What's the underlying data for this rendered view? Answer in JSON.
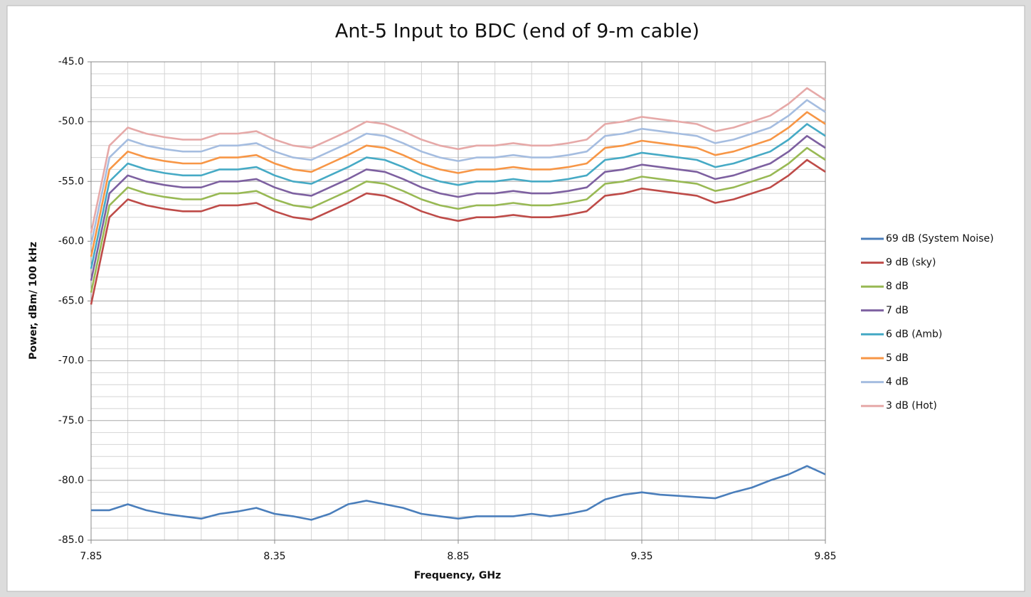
{
  "chart_data": {
    "type": "line",
    "title": "Ant-5 Input to BDC (end of 9-m cable)",
    "x_label": "Frequency, GHz",
    "y_label": "Power, dBm/ 100 kHz",
    "x": [
      7.85,
      7.9,
      7.95,
      8.0,
      8.05,
      8.1,
      8.15,
      8.2,
      8.25,
      8.3,
      8.35,
      8.4,
      8.45,
      8.5,
      8.55,
      8.6,
      8.65,
      8.7,
      8.75,
      8.8,
      8.85,
      8.9,
      8.95,
      9.0,
      9.05,
      9.1,
      9.15,
      9.2,
      9.25,
      9.3,
      9.35,
      9.4,
      9.45,
      9.5,
      9.55,
      9.6,
      9.65,
      9.7,
      9.75,
      9.8,
      9.85
    ],
    "xlim": [
      7.85,
      9.85
    ],
    "xticks": [
      7.85,
      8.35,
      8.85,
      9.35,
      9.85
    ],
    "ylim": [
      -85,
      -45
    ],
    "yticks": [
      {
        "value": -85,
        "label": "-85.0"
      },
      {
        "value": -80,
        "label": "-80.0"
      },
      {
        "value": -75,
        "label": "-75.0"
      },
      {
        "value": -70,
        "label": "-70.0"
      },
      {
        "value": -65,
        "label": "-65.0"
      },
      {
        "value": -60,
        "label": "-60.0"
      },
      {
        "value": -55,
        "label": "-55.0"
      },
      {
        "value": -50,
        "label": "-50.0"
      },
      {
        "value": -45,
        "label": "-45.0"
      }
    ],
    "grid": true,
    "legend": "right",
    "series": [
      {
        "name": "69 dB (System Noise)",
        "color": "#4a7ebb",
        "values": [
          -82.5,
          -82.5,
          -82,
          -82.5,
          -82.8,
          -83,
          -83.2,
          -82.8,
          -82.6,
          -82.3,
          -82.8,
          -83,
          -83.3,
          -82.8,
          -82,
          -81.7,
          -82,
          -82.3,
          -82.8,
          -83,
          -83.2,
          -83,
          -83,
          -83,
          -82.8,
          -83,
          -82.8,
          -82.5,
          -81.6,
          -81.2,
          -81,
          -81.2,
          -81.3,
          -81.4,
          -81.5,
          -81,
          -80.6,
          -80,
          -79.5,
          -78.8,
          -79.5
        ]
      },
      {
        "name": "9 dB (sky)",
        "color": "#be4b48",
        "values": [
          -65.3,
          -58,
          -56.5,
          -57,
          -57.3,
          -57.5,
          -57.5,
          -57,
          -57,
          -56.8,
          -57.5,
          -58,
          -58.2,
          -57.5,
          -56.8,
          -56,
          -56.2,
          -56.8,
          -57.5,
          -58,
          -58.3,
          -58,
          -58,
          -57.8,
          -58,
          -58,
          -57.8,
          -57.5,
          -56.2,
          -56,
          -55.6,
          -55.8,
          -56,
          -56.2,
          -56.8,
          -56.5,
          -56,
          -55.5,
          -54.5,
          -53.2,
          -54.2
        ]
      },
      {
        "name": "8 dB",
        "color": "#98b954",
        "values": [
          -64.3,
          -57,
          -55.5,
          -56,
          -56.3,
          -56.5,
          -56.5,
          -56,
          -56,
          -55.8,
          -56.5,
          -57,
          -57.2,
          -56.5,
          -55.8,
          -55,
          -55.2,
          -55.8,
          -56.5,
          -57,
          -57.3,
          -57,
          -57,
          -56.8,
          -57,
          -57,
          -56.8,
          -56.5,
          -55.2,
          -55,
          -54.6,
          -54.8,
          -55,
          -55.2,
          -55.8,
          -55.5,
          -55,
          -54.5,
          -53.5,
          -52.2,
          -53.2
        ]
      },
      {
        "name": "7 dB",
        "color": "#7d60a0",
        "values": [
          -63.3,
          -56,
          -54.5,
          -55,
          -55.3,
          -55.5,
          -55.5,
          -55,
          -55,
          -54.8,
          -55.5,
          -56,
          -56.2,
          -55.5,
          -54.8,
          -54,
          -54.2,
          -54.8,
          -55.5,
          -56,
          -56.3,
          -56,
          -56,
          -55.8,
          -56,
          -56,
          -55.8,
          -55.5,
          -54.2,
          -54,
          -53.6,
          -53.8,
          -54,
          -54.2,
          -54.8,
          -54.5,
          -54,
          -53.5,
          -52.5,
          -51.2,
          -52.2
        ]
      },
      {
        "name": "6 dB (Amb)",
        "color": "#46aac5",
        "values": [
          -62.3,
          -55,
          -53.5,
          -54,
          -54.3,
          -54.5,
          -54.5,
          -54,
          -54,
          -53.8,
          -54.5,
          -55,
          -55.2,
          -54.5,
          -53.8,
          -53,
          -53.2,
          -53.8,
          -54.5,
          -55,
          -55.3,
          -55,
          -55,
          -54.8,
          -55,
          -55,
          -54.8,
          -54.5,
          -53.2,
          -53,
          -52.6,
          -52.8,
          -53,
          -53.2,
          -53.8,
          -53.5,
          -53,
          -52.5,
          -51.5,
          -50.2,
          -51.2
        ]
      },
      {
        "name": "5 dB",
        "color": "#f79646",
        "values": [
          -61.3,
          -54,
          -52.5,
          -53,
          -53.3,
          -53.5,
          -53.5,
          -53,
          -53,
          -52.8,
          -53.5,
          -54,
          -54.2,
          -53.5,
          -52.8,
          -52,
          -52.2,
          -52.8,
          -53.5,
          -54,
          -54.3,
          -54,
          -54,
          -53.8,
          -54,
          -54,
          -53.8,
          -53.5,
          -52.2,
          -52,
          -51.6,
          -51.8,
          -52,
          -52.2,
          -52.8,
          -52.5,
          -52,
          -51.5,
          -50.5,
          -49.2,
          -50.2
        ]
      },
      {
        "name": "4 dB",
        "color": "#a5bde0",
        "values": [
          -60.3,
          -53,
          -51.5,
          -52,
          -52.3,
          -52.5,
          -52.5,
          -52,
          -52,
          -51.8,
          -52.5,
          -53,
          -53.2,
          -52.5,
          -51.8,
          -51,
          -51.2,
          -51.8,
          -52.5,
          -53,
          -53.3,
          -53,
          -53,
          -52.8,
          -53,
          -53,
          -52.8,
          -52.5,
          -51.2,
          -51,
          -50.6,
          -50.8,
          -51,
          -51.2,
          -51.8,
          -51.5,
          -51,
          -50.5,
          -49.5,
          -48.2,
          -49.2
        ]
      },
      {
        "name": "3 dB (Hot)",
        "color": "#e6a9a8",
        "values": [
          -59.3,
          -52,
          -50.5,
          -51,
          -51.3,
          -51.5,
          -51.5,
          -51,
          -51,
          -50.8,
          -51.5,
          -52,
          -52.2,
          -51.5,
          -50.8,
          -50,
          -50.2,
          -50.8,
          -51.5,
          -52,
          -52.3,
          -52,
          -52,
          -51.8,
          -52,
          -52,
          -51.8,
          -51.5,
          -50.2,
          -50,
          -49.6,
          -49.8,
          -50,
          -50.2,
          -50.8,
          -50.5,
          -50,
          -49.5,
          -48.5,
          -47.2,
          -48.2
        ]
      }
    ]
  }
}
